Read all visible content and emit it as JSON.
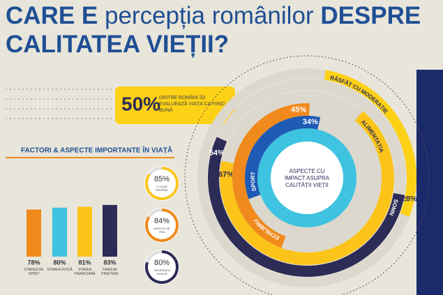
{
  "title": {
    "part1": "CARE E",
    "part2": "percepția românilor",
    "part3": "DESPRE",
    "line2": "CALITATEA VIEȚII?"
  },
  "callout": {
    "value": 50,
    "value_label": "50%",
    "text": "DINTRE ROMÂNI ÎȘI EVALUEAZĂ VIAȚA CA FIIND BUNĂ"
  },
  "chart_data": [
    {
      "type": "bar",
      "title": "FACTORI & ASPECTE IMPORTANTE ÎN VIAȚĂ",
      "categories": [
        "STAREA DE SPIRIT",
        "STAREA FIZICĂ",
        "STAREA FINANCIARĂ",
        "FAMILIA/ PRIETENII"
      ],
      "values": [
        78,
        80,
        81,
        83
      ],
      "value_labels": [
        "78%",
        "80%",
        "81%",
        "83%"
      ],
      "colors": [
        "#f08a1c",
        "#3ec3e0",
        "#fcc419",
        "#2d2c57"
      ]
    },
    {
      "type": "donut",
      "categories": [
        "O CASĂ PROPRIE",
        "NIVELUL DE TRAI",
        "SIGURANȚA ZILNICĂ"
      ],
      "values": [
        85,
        84,
        80
      ],
      "value_labels": [
        "85%",
        "84%",
        "80%"
      ],
      "colors": [
        "#fcc419",
        "#f08a1c",
        "#2d2c57"
      ]
    },
    {
      "type": "radial",
      "title": "ASPECTE CU IMPACT ASUPRA CALITĂȚII VIEȚII",
      "categories": [
        "RĂSFĂȚ CU MODERAȚIE",
        "SOMN",
        "ALIMENTAȚIA",
        "ECHILIBRU",
        "SPORT"
      ],
      "values": [
        28,
        54,
        67,
        45,
        34
      ],
      "value_labels": [
        "28%",
        "54%",
        "67%",
        "45%",
        "34%"
      ],
      "colors": [
        "#fcd116",
        "#2d2c57",
        "#fcc419",
        "#f08a1c",
        "#1f5bb5"
      ]
    }
  ]
}
